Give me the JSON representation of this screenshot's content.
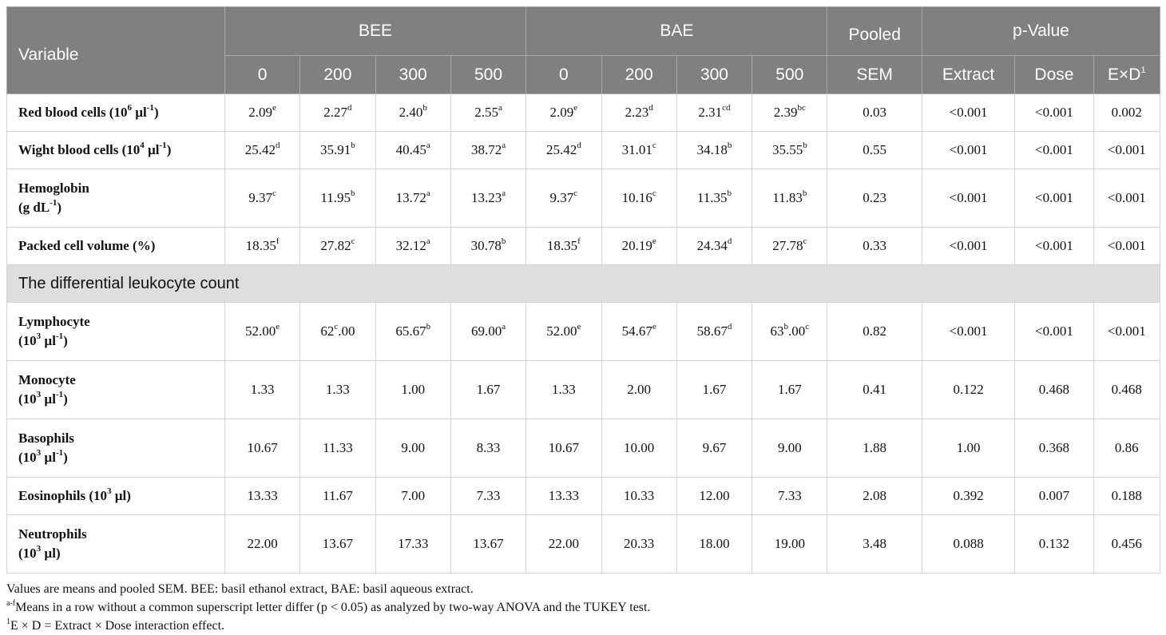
{
  "header": {
    "variable": "Variable",
    "bee": "BEE",
    "bae": "BAE",
    "pooled": "Pooled",
    "sem": "SEM",
    "pvalue": "p-Value",
    "doses": [
      "0",
      "200",
      "300",
      "500"
    ],
    "extract": "Extract",
    "dose": "Dose",
    "exd": "E×D",
    "exd_sup": "1"
  },
  "rows": [
    {
      "label": "Red blood cells (10",
      "label_sup": "6",
      "label_unit": " µl",
      "label_unit_sup": "-1",
      "label_end": ")",
      "label_line2": "",
      "cells": [
        {
          "v": "2.09",
          "s": "e"
        },
        {
          "v": "2.27",
          "s": "d"
        },
        {
          "v": "2.40",
          "s": "b"
        },
        {
          "v": "2.55",
          "s": "a"
        },
        {
          "v": "2.09",
          "s": "e"
        },
        {
          "v": "2.23",
          "s": "d"
        },
        {
          "v": "2.31",
          "s": "cd"
        },
        {
          "v": "2.39",
          "s": "bc"
        }
      ],
      "sem": "0.03",
      "extract": "<0.001",
      "dose": "<0.001",
      "exd": "0.002"
    },
    {
      "label": "Wight blood cells (10",
      "label_sup": "4",
      "label_unit": " µl",
      "label_unit_sup": "-1",
      "label_end": ")",
      "label_line2": "",
      "cells": [
        {
          "v": "25.42",
          "s": "d"
        },
        {
          "v": "35.91",
          "s": "b"
        },
        {
          "v": "40.45",
          "s": "a"
        },
        {
          "v": "38.72",
          "s": "a"
        },
        {
          "v": "25.42",
          "s": "d"
        },
        {
          "v": "31.01",
          "s": "c"
        },
        {
          "v": "34.18",
          "s": "b"
        },
        {
          "v": "35.55",
          "s": "b"
        }
      ],
      "sem": "0.55",
      "extract": "<0.001",
      "dose": "<0.001",
      "exd": "<0.001"
    },
    {
      "label": "Hemoglobin",
      "label_sup": "",
      "label_unit": "",
      "label_unit_sup": "",
      "label_end": "",
      "label_line2": "(g dL",
      "label_line2_sup": "-1",
      "label_line2_end": ")",
      "cells": [
        {
          "v": "9.37",
          "s": "c"
        },
        {
          "v": "11.95",
          "s": "b"
        },
        {
          "v": "13.72",
          "s": "a"
        },
        {
          "v": "13.23",
          "s": "a"
        },
        {
          "v": "9.37",
          "s": "c"
        },
        {
          "v": "10.16",
          "s": "c"
        },
        {
          "v": "11.35",
          "s": "b"
        },
        {
          "v": "11.83",
          "s": "b"
        }
      ],
      "sem": "0.23",
      "extract": "<0.001",
      "dose": "<0.001",
      "exd": "<0.001"
    },
    {
      "label": "Packed cell volume (%)",
      "label_sup": "",
      "label_unit": "",
      "label_unit_sup": "",
      "label_end": "",
      "label_line2": "",
      "cells": [
        {
          "v": "18.35",
          "s": "f"
        },
        {
          "v": "27.82",
          "s": "c"
        },
        {
          "v": "32.12",
          "s": "a"
        },
        {
          "v": "30.78",
          "s": "b"
        },
        {
          "v": "18.35",
          "s": "f"
        },
        {
          "v": "20.19",
          "s": "e"
        },
        {
          "v": "24.34",
          "s": "d"
        },
        {
          "v": "27.78",
          "s": "c"
        }
      ],
      "sem": "0.33",
      "extract": "<0.001",
      "dose": "<0.001",
      "exd": "<0.001"
    }
  ],
  "section_title": "The differential leukocyte count",
  "rows2": [
    {
      "label": "Lymphocyte",
      "line2": "(10",
      "line2_sup": "3",
      "line2_unit": " µl",
      "line2_unit_sup": "-1",
      "line2_end": ")",
      "cells": [
        {
          "v": "52.00",
          "s": "e"
        },
        {
          "v": "62",
          "s": "c",
          "after": ".00"
        },
        {
          "v": "65.67",
          "s": "b"
        },
        {
          "v": "69.00",
          "s": "a"
        },
        {
          "v": "52.00",
          "s": "e"
        },
        {
          "v": "54.67",
          "s": "e"
        },
        {
          "v": "58.67",
          "s": "d"
        },
        {
          "v": "63",
          "s": "b",
          "after": ".00",
          "s2": "c"
        }
      ],
      "sem": "0.82",
      "extract": "<0.001",
      "dose": "<0.001",
      "exd": "<0.001"
    },
    {
      "label": "Monocyte",
      "line2": "(10",
      "line2_sup": "3",
      "line2_unit": " µl",
      "line2_unit_sup": "-1",
      "line2_end": ")",
      "cells": [
        {
          "v": "1.33",
          "s": ""
        },
        {
          "v": "1.33",
          "s": ""
        },
        {
          "v": "1.00",
          "s": ""
        },
        {
          "v": "1.67",
          "s": ""
        },
        {
          "v": "1.33",
          "s": ""
        },
        {
          "v": "2.00",
          "s": ""
        },
        {
          "v": "1.67",
          "s": ""
        },
        {
          "v": "1.67",
          "s": ""
        }
      ],
      "sem": "0.41",
      "extract": "0.122",
      "dose": "0.468",
      "exd": "0.468"
    },
    {
      "label": "Basophils",
      "line2": "(10",
      "line2_sup": "3",
      "line2_unit": " µl",
      "line2_unit_sup": "-1",
      "line2_end": ")",
      "cells": [
        {
          "v": "10.67",
          "s": ""
        },
        {
          "v": "11.33",
          "s": ""
        },
        {
          "v": "9.00",
          "s": ""
        },
        {
          "v": "8.33",
          "s": ""
        },
        {
          "v": "10.67",
          "s": ""
        },
        {
          "v": "10.00",
          "s": ""
        },
        {
          "v": "9.67",
          "s": ""
        },
        {
          "v": "9.00",
          "s": ""
        }
      ],
      "sem": "1.88",
      "extract": "1.00",
      "dose": "0.368",
      "exd": "0.86"
    },
    {
      "label": "Eosinophils (10",
      "label_sup": "3",
      "label_end": " µl)",
      "line2": "",
      "cells": [
        {
          "v": "13.33",
          "s": ""
        },
        {
          "v": "11.67",
          "s": ""
        },
        {
          "v": "7.00",
          "s": ""
        },
        {
          "v": "7.33",
          "s": ""
        },
        {
          "v": "13.33",
          "s": ""
        },
        {
          "v": "10.33",
          "s": ""
        },
        {
          "v": "12.00",
          "s": ""
        },
        {
          "v": "7.33",
          "s": ""
        }
      ],
      "sem": "2.08",
      "extract": "0.392",
      "dose": "0.007",
      "exd": "0.188"
    },
    {
      "label": "Neutrophils",
      "line2": "(10",
      "line2_sup": "3",
      "line2_unit": " µl)",
      "line2_unit_sup": "",
      "line2_end": "",
      "cells": [
        {
          "v": "22.00",
          "s": ""
        },
        {
          "v": "13.67",
          "s": ""
        },
        {
          "v": "17.33",
          "s": ""
        },
        {
          "v": "13.67",
          "s": ""
        },
        {
          "v": "22.00",
          "s": ""
        },
        {
          "v": "20.33",
          "s": ""
        },
        {
          "v": "18.00",
          "s": ""
        },
        {
          "v": "19.00",
          "s": ""
        }
      ],
      "sem": "3.48",
      "extract": "0.088",
      "dose": "0.132",
      "exd": "0.456"
    }
  ],
  "notes": {
    "line1": "Values are means and pooled SEM. BEE: basil ethanol extract, BAE: basil aqueous extract.",
    "line2_sup": "a-f",
    "line2": "Means in a row without a common superscript letter differ (p < 0.05) as analyzed by two-way ANOVA and the TUKEY test.",
    "line3_sup": "1",
    "line3": "E × D = Extract × Dose interaction effect."
  }
}
